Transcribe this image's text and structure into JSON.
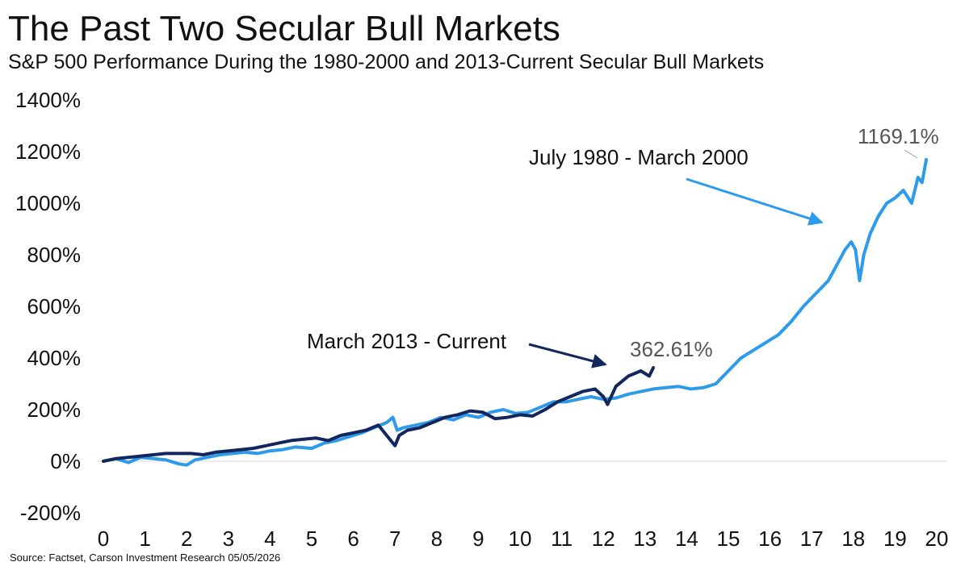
{
  "title": "The Past Two Secular Bull Markets",
  "subtitle": "S&P 500 Performance During the 1980-2000 and 2013-Current Secular Bull Markets",
  "source": "Source: Factset, Carson Investment Research 05/05/2026",
  "colors": {
    "series_1980": "#2E9BEA",
    "series_2013": "#14265E",
    "gridline": "#D9D9D9",
    "arrow_1980": "#2E9BEA",
    "arrow_2013": "#14265E"
  },
  "chart_data": {
    "type": "line",
    "xlim": [
      0,
      20
    ],
    "ylim": [
      -200,
      1400
    ],
    "x_ticks": [
      "0",
      "1",
      "2",
      "3",
      "4",
      "5",
      "6",
      "7",
      "8",
      "9",
      "10",
      "11",
      "12",
      "13",
      "14",
      "15",
      "16",
      "17",
      "18",
      "19",
      "20"
    ],
    "y_ticks": [
      "-200%",
      "0%",
      "200%",
      "400%",
      "600%",
      "800%",
      "1000%",
      "1200%",
      "1400%"
    ],
    "y_tick_values": [
      -200,
      0,
      200,
      400,
      600,
      800,
      1000,
      1200,
      1400
    ],
    "grid": "zero-line only",
    "annotations": [
      {
        "text": "July 1980 - March 2000",
        "series": "1980"
      },
      {
        "text": "March 2013 - Current",
        "series": "2013"
      }
    ],
    "end_labels": [
      {
        "text": "1169.1%",
        "series": "1980"
      },
      {
        "text": "362.61%",
        "series": "2013"
      }
    ],
    "series": [
      {
        "name": "July 1980 - March 2000",
        "key": "1980",
        "x": [
          0,
          0.3,
          0.6,
          0.9,
          1.2,
          1.5,
          1.8,
          2.0,
          2.2,
          2.5,
          2.8,
          3.1,
          3.4,
          3.7,
          4.0,
          4.3,
          4.6,
          5.0,
          5.3,
          5.6,
          5.9,
          6.2,
          6.5,
          6.8,
          6.95,
          7.05,
          7.2,
          7.5,
          7.8,
          8.1,
          8.4,
          8.7,
          9.0,
          9.3,
          9.6,
          9.9,
          10.2,
          10.5,
          10.8,
          11.1,
          11.4,
          11.7,
          12.0,
          12.3,
          12.6,
          12.9,
          13.2,
          13.5,
          13.8,
          14.1,
          14.4,
          14.7,
          15.0,
          15.3,
          15.6,
          15.9,
          16.2,
          16.5,
          16.8,
          17.1,
          17.4,
          17.6,
          17.8,
          17.95,
          18.05,
          18.15,
          18.25,
          18.4,
          18.6,
          18.8,
          19.0,
          19.2,
          19.4,
          19.55,
          19.65,
          19.75
        ],
        "y": [
          0,
          10,
          -5,
          15,
          10,
          5,
          -10,
          -15,
          5,
          15,
          25,
          30,
          35,
          30,
          40,
          45,
          55,
          50,
          70,
          80,
          95,
          110,
          130,
          150,
          170,
          120,
          130,
          140,
          150,
          170,
          160,
          180,
          170,
          190,
          200,
          185,
          190,
          210,
          230,
          230,
          240,
          250,
          240,
          245,
          260,
          270,
          280,
          285,
          290,
          280,
          285,
          300,
          350,
          400,
          430,
          460,
          490,
          540,
          600,
          650,
          700,
          760,
          820,
          850,
          820,
          700,
          800,
          880,
          950,
          1000,
          1020,
          1050,
          1000,
          1100,
          1080,
          1169.1
        ]
      },
      {
        "name": "March 2013 - Current",
        "key": "2013",
        "x": [
          0,
          0.3,
          0.6,
          0.9,
          1.2,
          1.5,
          1.8,
          2.1,
          2.4,
          2.7,
          3.0,
          3.3,
          3.6,
          3.9,
          4.2,
          4.5,
          4.8,
          5.1,
          5.4,
          5.7,
          6.0,
          6.3,
          6.6,
          6.9,
          7.0,
          7.1,
          7.3,
          7.6,
          7.9,
          8.2,
          8.5,
          8.8,
          9.1,
          9.4,
          9.7,
          10.0,
          10.3,
          10.6,
          10.9,
          11.2,
          11.5,
          11.8,
          12.0,
          12.1,
          12.3,
          12.6,
          12.9,
          13.1,
          13.2
        ],
        "y": [
          0,
          10,
          15,
          20,
          25,
          30,
          30,
          30,
          25,
          35,
          40,
          45,
          50,
          60,
          70,
          80,
          85,
          90,
          80,
          100,
          110,
          120,
          140,
          80,
          60,
          100,
          120,
          130,
          150,
          170,
          180,
          195,
          190,
          165,
          170,
          180,
          175,
          200,
          230,
          250,
          270,
          280,
          250,
          220,
          290,
          330,
          350,
          330,
          362.61
        ]
      }
    ]
  }
}
